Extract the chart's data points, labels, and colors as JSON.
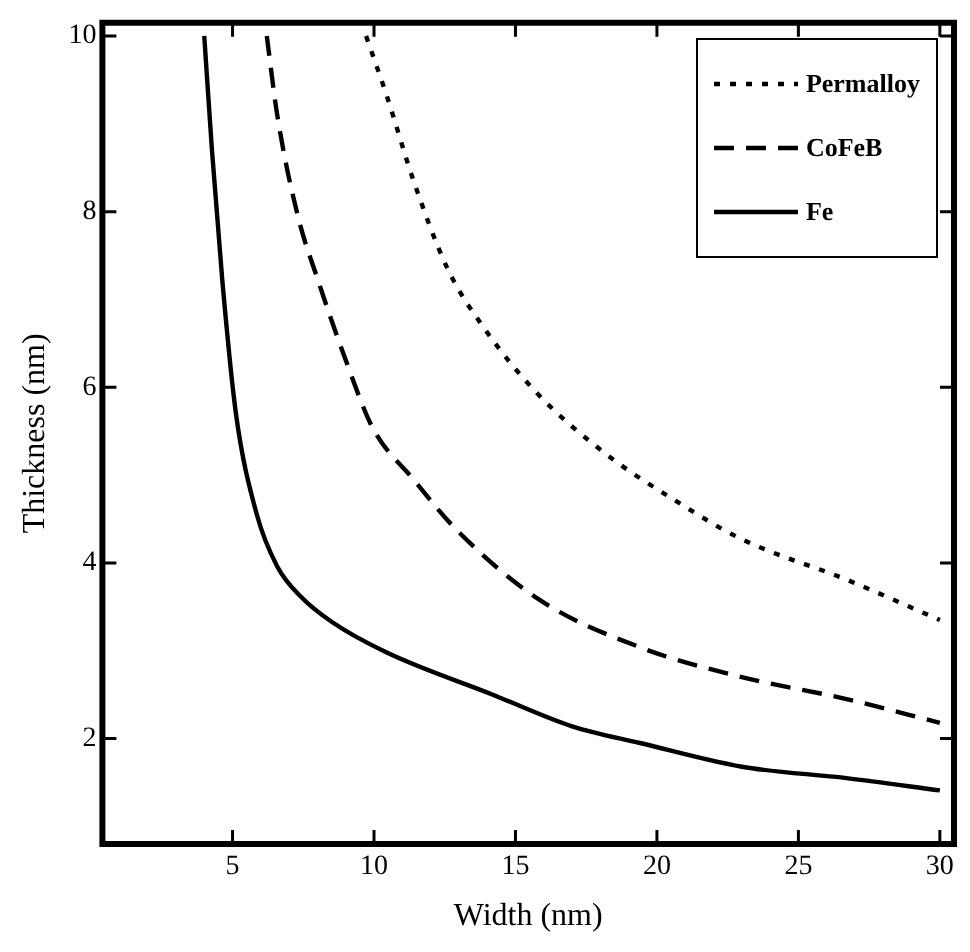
{
  "chart_data": {
    "type": "line",
    "xlabel": "Width (nm)",
    "ylabel": "Thickness (nm)",
    "xlim": [
      0.4,
      30.5
    ],
    "xticks": [
      5,
      10,
      15,
      20,
      25,
      30
    ],
    "ylim": [
      0.8,
      10.15
    ],
    "yticks": [
      2,
      4,
      6,
      8,
      10
    ],
    "grid": false,
    "legend": "top right",
    "marker": "none",
    "series": [
      {
        "name": "Permalloy",
        "color": "#000000",
        "line_style": "dotted",
        "x": [
          9.72,
          10.45,
          11.4,
          12.6,
          13.9,
          15.8,
          18.2,
          20.6,
          23.0,
          26.7,
          30
        ],
        "values": [
          10,
          9.32,
          8.35,
          7.35,
          6.67,
          5.92,
          5.24,
          4.72,
          4.27,
          3.81,
          3.35
        ]
      },
      {
        "name": "CoFeB",
        "color": "#000000",
        "line_style": "dashed",
        "x": [
          6.21,
          6.58,
          7.3,
          8.03,
          9.0,
          9.95,
          11.4,
          12.85,
          15.8,
          19.4,
          23.0,
          26.7,
          30
        ],
        "values": [
          10,
          9.1,
          7.96,
          7.21,
          6.31,
          5.54,
          4.95,
          4.4,
          3.59,
          3.04,
          2.7,
          2.45,
          2.18
        ]
      },
      {
        "name": "Fe",
        "color": "#000000",
        "line_style": "solid",
        "x": [
          4.0,
          4.27,
          4.64,
          5.12,
          5.85,
          6.58,
          7.4,
          8.5,
          10.45,
          14.2,
          17.0,
          19.4,
          23.0,
          26.7,
          30
        ],
        "values": [
          10,
          8.71,
          7.21,
          5.7,
          4.56,
          3.96,
          3.62,
          3.33,
          2.98,
          2.5,
          2.14,
          1.95,
          1.68,
          1.55,
          1.41
        ]
      }
    ]
  }
}
